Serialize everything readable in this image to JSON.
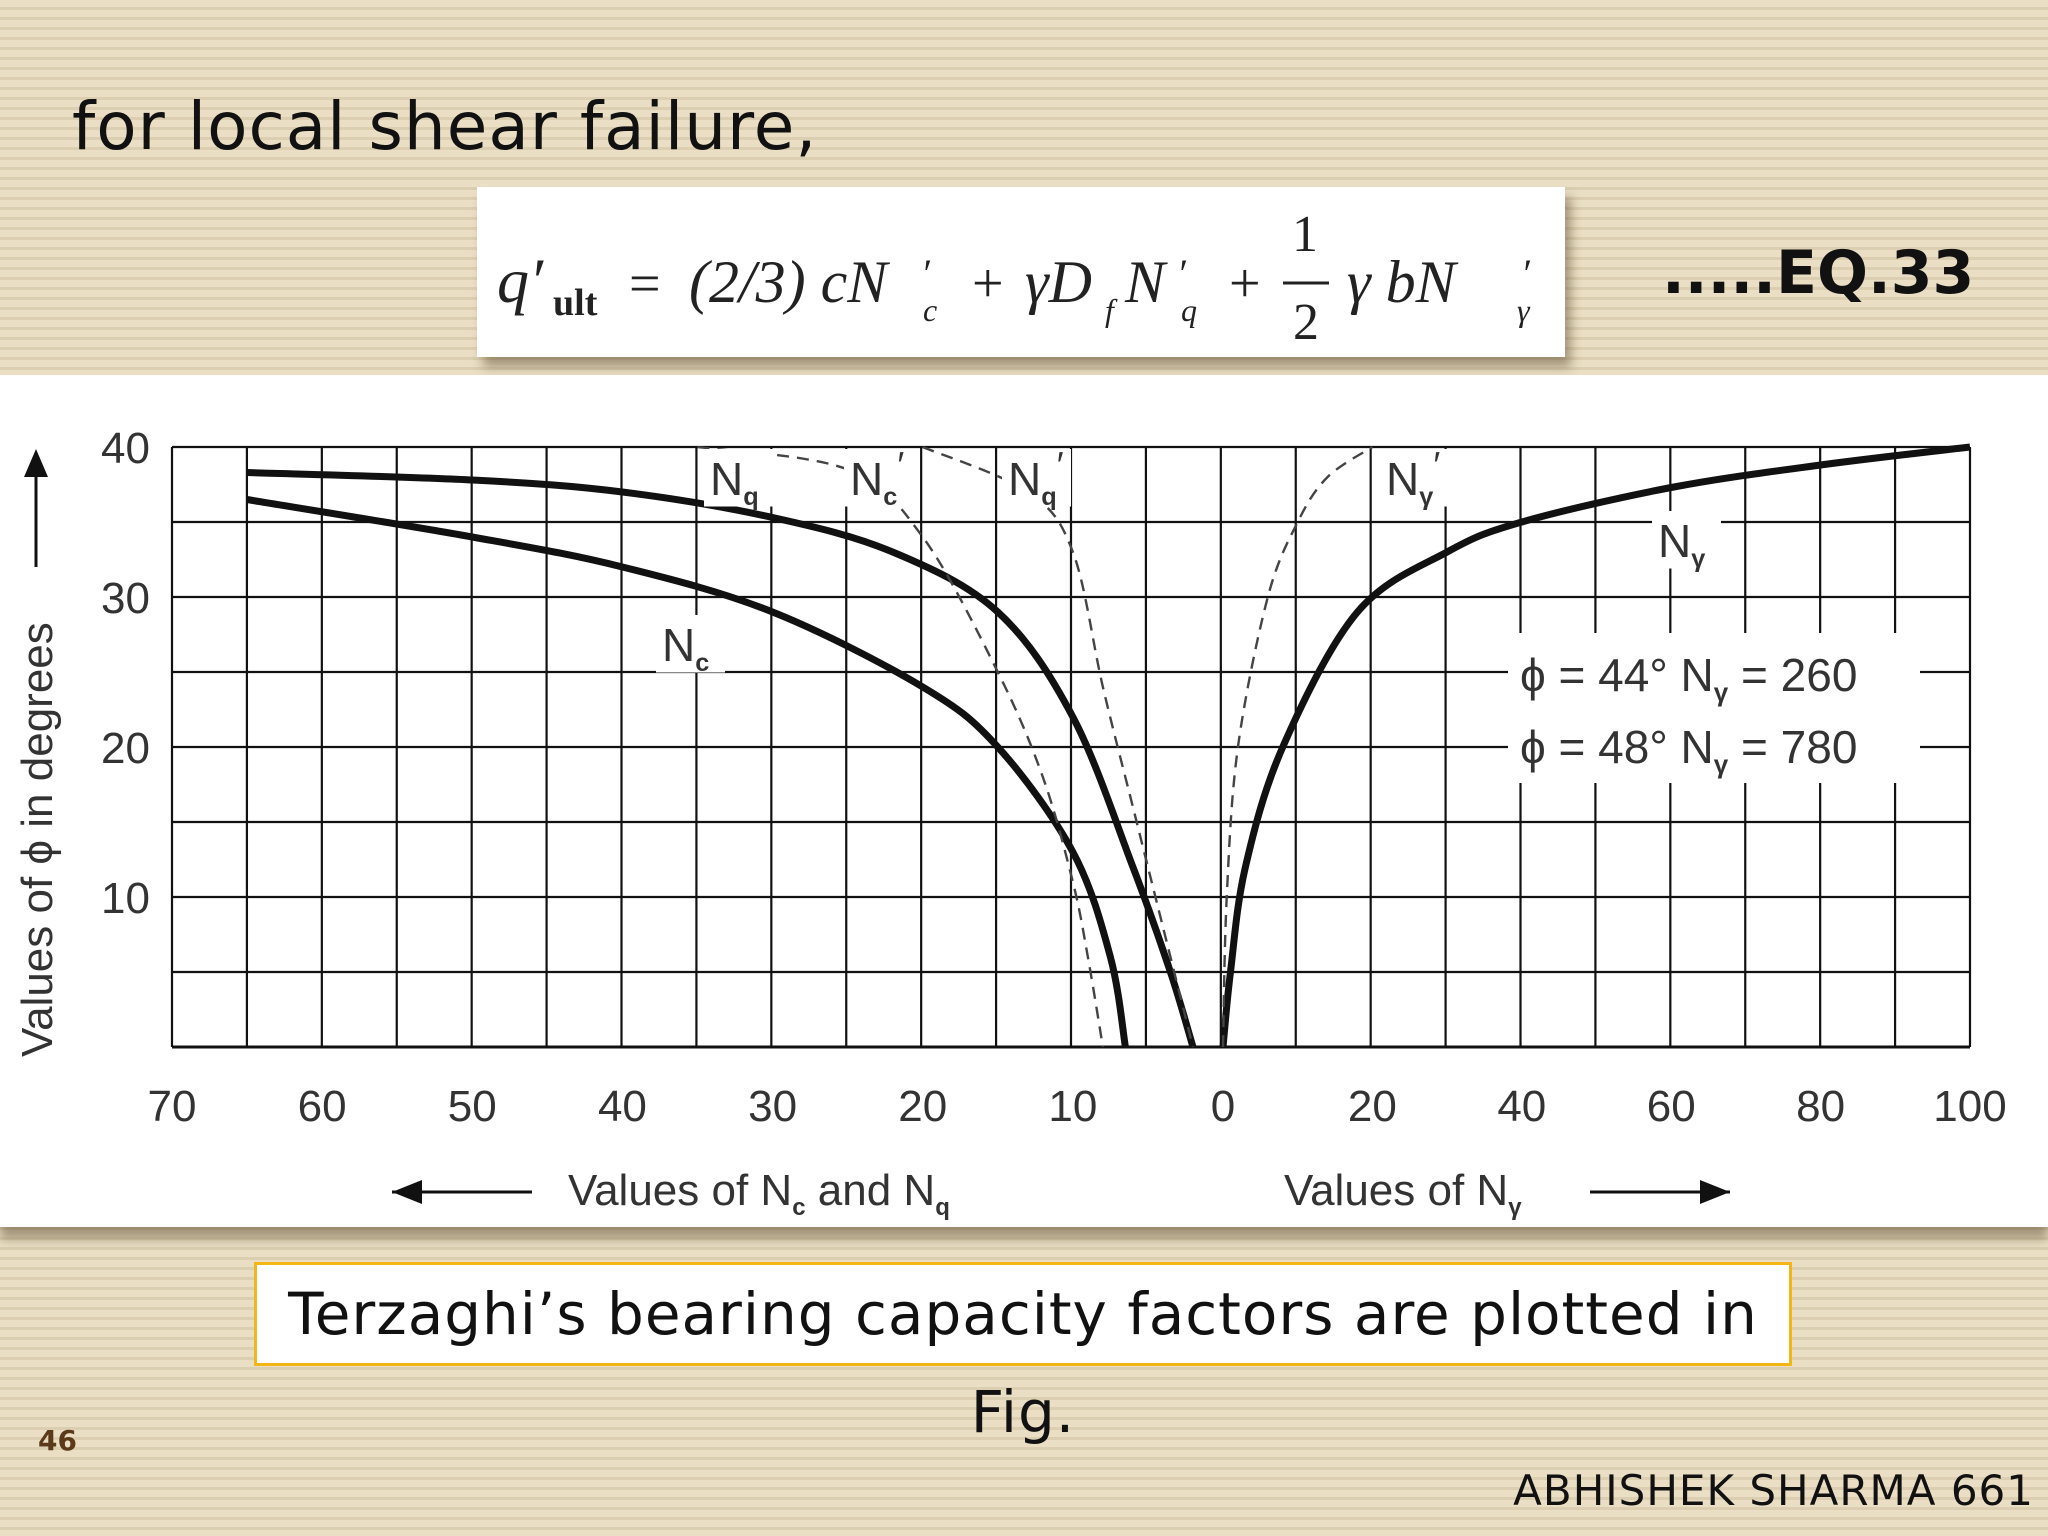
{
  "slide": {
    "title": "for local shear failure,",
    "equation_number": ".....EQ.33",
    "caption": "Terzaghi’s bearing capacity factors are plotted in Fig.",
    "page_number": "46",
    "author": "ABHISHEK SHARMA 661"
  },
  "equation": {
    "lhs": "q′",
    "lhs_sub": "ult",
    "equals": "=",
    "term1": "(2/3) cN",
    "term1_sub": "c",
    "plus1": "+",
    "term2": "γD",
    "term2_sub": "f",
    "term2b": "N",
    "term2b_sub": "q",
    "plus2": "+",
    "frac_num": "1",
    "frac_den": "2",
    "term3": "γ bN",
    "term3_sub": "γ",
    "prime": "′"
  },
  "chart_data": {
    "type": "line",
    "ylabel": "Values of ϕ in degrees",
    "ylim": [
      0,
      40
    ],
    "y_ticks": [
      "10",
      "20",
      "30",
      "40"
    ],
    "left_axis": {
      "label": "Values of N",
      "label_sub": "c",
      "label_mid": " and N",
      "label_sub2": "q",
      "range": [
        70,
        0
      ],
      "ticks": [
        "70",
        "60",
        "50",
        "40",
        "30",
        "20",
        "10",
        "0"
      ]
    },
    "right_axis": {
      "label": "Values of N",
      "label_sub": "γ",
      "range": [
        0,
        100
      ],
      "ticks": [
        "0",
        "20",
        "40",
        "60",
        "80",
        "100"
      ]
    },
    "grid": true,
    "series": [
      {
        "name": "Nc",
        "label": "N",
        "label_sub": "c",
        "axis": "left",
        "style": "solid",
        "points": [
          [
            65,
            36.5
          ],
          [
            50,
            34
          ],
          [
            40,
            32
          ],
          [
            30,
            29
          ],
          [
            20,
            24
          ],
          [
            15,
            20
          ],
          [
            10,
            13
          ],
          [
            7.5,
            6
          ],
          [
            6.5,
            0
          ]
        ]
      },
      {
        "name": "Nq",
        "label": "N",
        "label_sub": "q",
        "axis": "left",
        "style": "solid",
        "points": [
          [
            65,
            38.3
          ],
          [
            50,
            37.8
          ],
          [
            40,
            37
          ],
          [
            30,
            35.3
          ],
          [
            22,
            33
          ],
          [
            15,
            29
          ],
          [
            10,
            22
          ],
          [
            6,
            12
          ],
          [
            3.5,
            5
          ],
          [
            2,
            0
          ]
        ]
      },
      {
        "name": "Nc′",
        "label": "N",
        "label_sub": "c",
        "prime": true,
        "axis": "left",
        "style": "dashed",
        "points": [
          [
            35,
            40
          ],
          [
            25,
            38.5
          ],
          [
            20,
            34
          ],
          [
            15,
            25
          ],
          [
            12,
            18
          ],
          [
            10,
            11
          ],
          [
            9,
            6
          ],
          [
            8,
            0
          ]
        ]
      },
      {
        "name": "Nq′",
        "label": "N",
        "label_sub": "q",
        "prime": true,
        "axis": "left",
        "style": "dashed",
        "points": [
          [
            20,
            40
          ],
          [
            13,
            37
          ],
          [
            10,
            33
          ],
          [
            8,
            24
          ],
          [
            6,
            16
          ],
          [
            4.5,
            10
          ],
          [
            3,
            4
          ],
          [
            2,
            0
          ]
        ]
      },
      {
        "name": "Nγ",
        "label": "N",
        "label_sub": "γ",
        "axis": "right",
        "style": "solid",
        "points": [
          [
            0,
            0
          ],
          [
            1,
            5
          ],
          [
            3,
            12
          ],
          [
            8,
            20
          ],
          [
            18,
            29
          ],
          [
            30,
            33
          ],
          [
            40,
            35
          ],
          [
            60,
            37.3
          ],
          [
            80,
            38.8
          ],
          [
            100,
            40
          ]
        ]
      },
      {
        "name": "Nγ′",
        "label": "N",
        "label_sub": "γ",
        "prime": true,
        "axis": "right",
        "style": "dashed",
        "points": [
          [
            0,
            0
          ],
          [
            0.5,
            10
          ],
          [
            2,
            20
          ],
          [
            6,
            30
          ],
          [
            10,
            35
          ],
          [
            14,
            38
          ],
          [
            20,
            40
          ]
        ]
      }
    ],
    "annotations": [
      {
        "phi": "ϕ = 44°",
        "n": "N",
        "n_sub": "γ",
        "value": "= 260"
      },
      {
        "phi": "ϕ = 48°",
        "n": "N",
        "n_sub": "γ",
        "value": "= 780"
      }
    ]
  }
}
